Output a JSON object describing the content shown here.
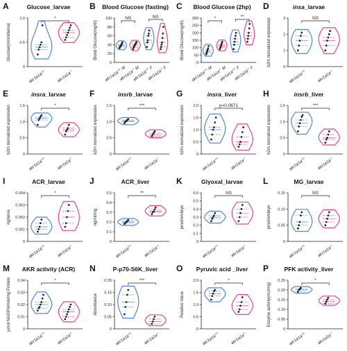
{
  "colors": {
    "wt": "#4a86d8",
    "ko": "#e8457a",
    "point": "#222222",
    "axis": "#222222"
  },
  "genotypes": {
    "wt": "akr1a1a+/+",
    "ko": "akr1a1a-/-"
  },
  "chart_data": [
    {
      "panel": "A",
      "type": "violin",
      "title": "Glucose_larvae",
      "ylabel": "Glucose(mmol/larva)",
      "ylim": [
        0,
        1.0
      ],
      "yticks": [
        "0",
        "0.5",
        "1.0"
      ],
      "categories": [
        "akr1a1a+/+",
        "akr1a1a-/-"
      ],
      "series": [
        {
          "values": [
            0.25,
            0.35,
            0.4,
            0.45,
            0.5,
            0.85
          ]
        },
        {
          "values": [
            0.55,
            0.6,
            0.65,
            0.7,
            0.75,
            0.8,
            0.85
          ]
        }
      ],
      "significance": [
        {
          "from": 0,
          "to": 1,
          "label": "*"
        }
      ]
    },
    {
      "panel": "B",
      "type": "violin",
      "title": "Blood Glucose (fasting)",
      "ylabel": "Blood Glucose(mg/dl)",
      "ylim": [
        0,
        100
      ],
      "yticks": [
        "0",
        "20",
        "40",
        "60",
        "80",
        "100"
      ],
      "categories": [
        "akr1a1a+/+ M",
        "akr1a1a-/- M",
        "akr1a1a+/+ F",
        "akr1a1a-/- F"
      ],
      "series": [
        {
          "values": [
            32,
            35,
            36,
            38,
            40,
            42,
            45
          ]
        },
        {
          "values": [
            30,
            34,
            36,
            38,
            40,
            42,
            44,
            46
          ]
        },
        {
          "values": [
            35,
            45,
            50,
            60,
            65,
            72
          ]
        },
        {
          "values": [
            30,
            35,
            40,
            45,
            55,
            65,
            80
          ]
        }
      ],
      "significance": [
        {
          "from": 0,
          "to": 1,
          "label": "NS"
        },
        {
          "from": 2,
          "to": 3,
          "label": "NS"
        }
      ]
    },
    {
      "panel": "C",
      "type": "violin",
      "title": "Blood Glucose (2hp)",
      "ylabel": "Blood Glucose(mg/dl)",
      "ylim": [
        0,
        300
      ],
      "yticks": [
        "0",
        "50",
        "100",
        "150",
        "200",
        "250",
        "300"
      ],
      "categories": [
        "akr1a1a+/+ M",
        "akr1a1a-/- M",
        "akr1a1a+/+ F",
        "akr1a1a-/- F"
      ],
      "series": [
        {
          "values": [
            55,
            65,
            75,
            85,
            95,
            110
          ]
        },
        {
          "values": [
            90,
            100,
            110,
            120,
            130,
            140
          ]
        },
        {
          "values": [
            90,
            120,
            140,
            160,
            180,
            200
          ]
        },
        {
          "values": [
            140,
            160,
            180,
            200,
            230,
            260
          ]
        }
      ],
      "significance": [
        {
          "from": 0,
          "to": 1,
          "label": "*"
        },
        {
          "from": 2,
          "to": 3,
          "label": "**"
        }
      ]
    },
    {
      "panel": "D",
      "type": "violin",
      "title": "insa_larvae",
      "title_italic": "insa",
      "title_rest": "_larvae",
      "ylabel": "b2m nomalized expression",
      "ylim": [
        0,
        3
      ],
      "yticks": [
        "0",
        "1",
        "2",
        "3"
      ],
      "categories": [
        "akr1a1a+/+",
        "akr1a1a-/-"
      ],
      "series": [
        {
          "values": [
            1.0,
            1.3,
            1.6,
            1.9,
            2.1
          ]
        },
        {
          "values": [
            1.0,
            1.3,
            1.6,
            1.8,
            2.0,
            2.2
          ]
        }
      ],
      "significance": [
        {
          "from": 0,
          "to": 1,
          "label": "NS"
        }
      ]
    },
    {
      "panel": "E",
      "type": "violin",
      "title": "insra_larvae",
      "title_italic": "insra",
      "title_rest": "_larvae",
      "ylabel": "b2m nomalized expression",
      "ylim": [
        0,
        1.5
      ],
      "yticks": [
        "0",
        "0.5",
        "1.0",
        "1.5"
      ],
      "categories": [
        "akr1a1a+/+",
        "akr1a1a-/-"
      ],
      "series": [
        {
          "values": [
            0.9,
            1.05,
            1.1,
            1.15,
            1.2
          ]
        },
        {
          "values": [
            0.6,
            0.7,
            0.75,
            0.8,
            0.9
          ]
        }
      ],
      "significance": [
        {
          "from": 0,
          "to": 1,
          "label": "*"
        }
      ]
    },
    {
      "panel": "F",
      "type": "violin",
      "title": "insrb_larvae",
      "title_italic": "insrb",
      "title_rest": "_larvae",
      "ylabel": "b2m nomalized expression",
      "ylim": [
        0,
        1.5
      ],
      "yticks": [
        "0",
        "0.5",
        "1.0",
        "1.5"
      ],
      "categories": [
        "akr1a1a+/+",
        "akr1a1a-/-"
      ],
      "series": [
        {
          "values": [
            0.95,
            1.0,
            1.02,
            1.05,
            1.08
          ]
        },
        {
          "values": [
            0.55,
            0.6,
            0.65,
            0.7
          ]
        }
      ],
      "significance": [
        {
          "from": 0,
          "to": 1,
          "label": "***"
        }
      ]
    },
    {
      "panel": "G",
      "type": "violin",
      "title": "insra_liver",
      "title_italic": "insra",
      "title_rest": "_liver",
      "ylabel": "b2m nomalized expression",
      "ylim": [
        0,
        2.0
      ],
      "yticks": [
        "0",
        "0.5",
        "1.0",
        "1.5",
        "2.0"
      ],
      "categories": [
        "akr1a1a+/+",
        "akr1a1a-/-"
      ],
      "series": [
        {
          "values": [
            0.6,
            0.8,
            1.0,
            1.1,
            1.3,
            1.5
          ]
        },
        {
          "values": [
            0.3,
            0.4,
            0.5,
            0.7,
            0.9,
            1.1
          ]
        }
      ],
      "significance": [
        {
          "from": 0,
          "to": 1,
          "label": "p=0.0671"
        }
      ]
    },
    {
      "panel": "H",
      "type": "violin",
      "title": "insrb_liver",
      "title_italic": "insrb",
      "title_rest": "_liver",
      "ylabel": "b2m nomalized expression",
      "ylim": [
        0,
        1.5
      ],
      "yticks": [
        "0",
        "0.5",
        "1.0",
        "1.5"
      ],
      "categories": [
        "akr1a1a+/+",
        "akr1a1a-/-"
      ],
      "series": [
        {
          "values": [
            0.7,
            0.85,
            0.95,
            1.05,
            1.15,
            1.2
          ]
        },
        {
          "values": [
            0.35,
            0.45,
            0.5,
            0.6,
            0.7
          ]
        }
      ],
      "significance": [
        {
          "from": 0,
          "to": 1,
          "label": "***"
        }
      ]
    },
    {
      "panel": "I",
      "type": "violin",
      "title": "ACR_larvae",
      "ylabel": "ng/larva",
      "ylim": [
        0,
        0.004
      ],
      "yticks": [
        "0",
        "0.001",
        "0.002",
        "0.003",
        "0.004"
      ],
      "categories": [
        "akr1a1a+/+",
        "akr1a1a-/-"
      ],
      "series": [
        {
          "values": [
            0.0008,
            0.001,
            0.0012,
            0.0015,
            0.0018
          ]
        },
        {
          "values": [
            0.0012,
            0.0015,
            0.002,
            0.0025,
            0.003
          ]
        }
      ],
      "significance": [
        {
          "from": 0,
          "to": 1,
          "label": "*"
        }
      ]
    },
    {
      "panel": "J",
      "type": "violin",
      "title": "ACR_liver",
      "ylabel": "ng/ml/mg",
      "ylim": [
        0,
        0.5
      ],
      "yticks": [
        "0",
        "0.1",
        "0.2",
        "0.3",
        "0.4",
        "0.5"
      ],
      "categories": [
        "akr1a1a+/+",
        "akr1a1a-/-"
      ],
      "series": [
        {
          "values": [
            0.18,
            0.19,
            0.2,
            0.21,
            0.22
          ]
        },
        {
          "values": [
            0.28,
            0.3,
            0.31,
            0.33,
            0.35
          ]
        }
      ],
      "significance": [
        {
          "from": 0,
          "to": 1,
          "label": "**"
        }
      ]
    },
    {
      "panel": "K",
      "type": "violin",
      "title": "Glyoxal_larvae",
      "ylabel": "pmol/embryo",
      "ylim": [
        0,
        0.6
      ],
      "yticks": [
        "0",
        "0.1",
        "0.2",
        "0.3",
        "0.4",
        "0.5",
        "0.6"
      ],
      "categories": [
        "akr1a1a+/+",
        "akr1a1a-/-"
      ],
      "series": [
        {
          "values": [
            0.25,
            0.28,
            0.3,
            0.32,
            0.35
          ]
        },
        {
          "values": [
            0.25,
            0.3,
            0.35,
            0.4,
            0.45
          ]
        }
      ],
      "significance": [
        {
          "from": 0,
          "to": 1,
          "label": "NS"
        }
      ]
    },
    {
      "panel": "L",
      "type": "violin",
      "title": "MG_larvae",
      "ylabel": "pmol/embryo",
      "ylim": [
        0,
        0.15
      ],
      "yticks": [
        "0",
        "0.05",
        "0.10",
        "0.15"
      ],
      "categories": [
        "akr1a1a+/+",
        "akr1a1a-/-"
      ],
      "series": [
        {
          "values": [
            0.04,
            0.05,
            0.06,
            0.08,
            0.09
          ]
        },
        {
          "values": [
            0.05,
            0.06,
            0.07,
            0.08,
            0.09
          ]
        }
      ],
      "significance": [
        {
          "from": 0,
          "to": 1,
          "label": "NS"
        }
      ]
    },
    {
      "panel": "M",
      "type": "violin",
      "title": "AKR activity (ACR)",
      "ylabel": "μmol NADPH/min/mg Protein",
      "ylim": [
        0,
        0.04
      ],
      "yticks": [
        "0",
        "0.01",
        "0.02",
        "0.03",
        "0.04"
      ],
      "categories": [
        "akr1a1a+/+",
        "akr1a1a-/-"
      ],
      "series": [
        {
          "values": [
            0.015,
            0.017,
            0.018,
            0.02,
            0.022,
            0.025,
            0.028
          ]
        },
        {
          "values": [
            0.008,
            0.01,
            0.012,
            0.014,
            0.016,
            0.018,
            0.02
          ]
        }
      ],
      "significance": [
        {
          "from": 0,
          "to": 1,
          "label": "*"
        }
      ]
    },
    {
      "panel": "N",
      "type": "violin",
      "title": "P-p70-S6K_liver",
      "ylabel": "Absorbance",
      "ylim": [
        0,
        0.2
      ],
      "yticks": [
        "0",
        "0.05",
        "0.10",
        "0.15",
        "0.20"
      ],
      "categories": [
        "akr1a1a+/+",
        "akr1a1a-/-"
      ],
      "series": [
        {
          "values": [
            0.06,
            0.09,
            0.11,
            0.14,
            0.16
          ]
        },
        {
          "values": [
            0.02,
            0.03,
            0.04,
            0.05
          ]
        }
      ],
      "significance": [
        {
          "from": 0,
          "to": 1,
          "label": "***"
        }
      ]
    },
    {
      "panel": "O",
      "type": "violin",
      "title": "Pyruvic acid _liver",
      "ylabel": "Relative Value",
      "ylim": [
        0,
        2.0
      ],
      "yticks": [
        "0",
        "0.5",
        "1.0",
        "1.5",
        "2.0"
      ],
      "categories": [
        "akr1a1a+/+",
        "akr1a1a-/-"
      ],
      "series": [
        {
          "values": [
            1.2,
            1.35,
            1.45,
            1.55,
            1.6
          ]
        },
        {
          "values": [
            0.7,
            0.8,
            0.95,
            1.1,
            1.3
          ]
        }
      ],
      "significance": [
        {
          "from": 0,
          "to": 1,
          "label": "*"
        }
      ]
    },
    {
      "panel": "P",
      "type": "violin",
      "title": "PFK activity_liver",
      "ylabel": "Enzyme activity(mU/mg)",
      "ylim": [
        0,
        0.25
      ],
      "yticks": [
        "0",
        "0.05",
        "0.10",
        "0.15",
        "0.20",
        "0.25"
      ],
      "categories": [
        "akr1a1a+/+",
        "akr1a1a-/-"
      ],
      "series": [
        {
          "values": [
            0.19,
            0.2,
            0.205,
            0.21
          ]
        },
        {
          "values": [
            0.13,
            0.14,
            0.15,
            0.16
          ]
        }
      ],
      "significance": [
        {
          "from": 0,
          "to": 1,
          "label": "*"
        }
      ]
    }
  ]
}
